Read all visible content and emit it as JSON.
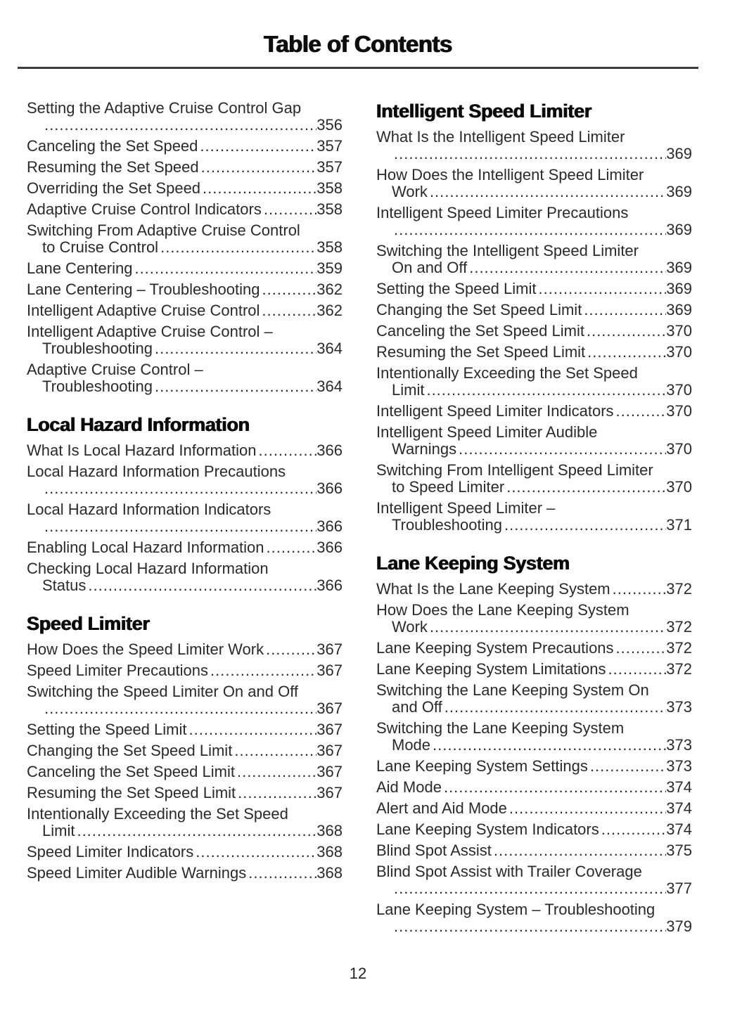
{
  "page": {
    "title": "Table of Contents",
    "page_number": "12"
  },
  "colors": {
    "ink": "#2a2a2a",
    "heading_ink": "#0b0b0b",
    "background": "#ffffff",
    "divider": "#3d3d3d"
  },
  "columns": [
    {
      "sections": [
        {
          "heading": null,
          "entries": [
            {
              "l1": "Setting the Adaptive Cruise Control Gap",
              "l2": "",
              "page": "356"
            },
            {
              "l1": "Canceling the Set Speed",
              "l2": null,
              "page": "357"
            },
            {
              "l1": "Resuming the Set Speed",
              "l2": null,
              "page": "357"
            },
            {
              "l1": "Overriding the Set Speed",
              "l2": null,
              "page": "358"
            },
            {
              "l1": "Adaptive Cruise Control Indicators",
              "l2": null,
              "page": "358"
            },
            {
              "l1": "Switching From Adaptive Cruise Control",
              "l2": "to Cruise Control",
              "page": "358"
            },
            {
              "l1": "Lane Centering",
              "l2": null,
              "page": "359"
            },
            {
              "l1": "Lane Centering – Troubleshooting",
              "l2": null,
              "page": "362"
            },
            {
              "l1": "Intelligent Adaptive Cruise Control",
              "l2": null,
              "page": "362"
            },
            {
              "l1": "Intelligent Adaptive Cruise Control –",
              "l2": "Troubleshooting",
              "page": "364"
            },
            {
              "l1": "Adaptive Cruise Control –",
              "l2": "Troubleshooting",
              "page": "364"
            }
          ]
        },
        {
          "heading": "Local Hazard Information",
          "entries": [
            {
              "l1": "What Is Local Hazard Information",
              "l2": null,
              "page": "366"
            },
            {
              "l1": "Local Hazard Information Precautions",
              "l2": "",
              "page": "366"
            },
            {
              "l1": "Local Hazard Information Indicators",
              "l2": "",
              "page": "366"
            },
            {
              "l1": "Enabling Local Hazard Information",
              "l2": null,
              "page": "366"
            },
            {
              "l1": "Checking Local Hazard Information",
              "l2": "Status",
              "page": "366"
            }
          ]
        },
        {
          "heading": "Speed Limiter",
          "entries": [
            {
              "l1": "How Does the Speed Limiter Work",
              "l2": null,
              "page": "367"
            },
            {
              "l1": "Speed Limiter Precautions",
              "l2": null,
              "page": "367"
            },
            {
              "l1": "Switching the Speed Limiter On and Off",
              "l2": "",
              "page": "367"
            },
            {
              "l1": "Setting the Speed Limit",
              "l2": null,
              "page": "367"
            },
            {
              "l1": "Changing the Set Speed Limit",
              "l2": null,
              "page": "367"
            },
            {
              "l1": "Canceling the Set Speed Limit",
              "l2": null,
              "page": "367"
            },
            {
              "l1": "Resuming the Set Speed Limit",
              "l2": null,
              "page": "367"
            },
            {
              "l1": "Intentionally Exceeding the Set Speed",
              "l2": "Limit",
              "page": "368"
            },
            {
              "l1": "Speed Limiter Indicators",
              "l2": null,
              "page": "368"
            },
            {
              "l1": "Speed Limiter Audible Warnings",
              "l2": null,
              "page": "368"
            }
          ]
        }
      ]
    },
    {
      "sections": [
        {
          "heading": "Intelligent Speed Limiter",
          "entries": [
            {
              "l1": "What Is the Intelligent Speed Limiter",
              "l2": "",
              "page": "369"
            },
            {
              "l1": "How Does the Intelligent Speed Limiter",
              "l2": "Work",
              "page": "369"
            },
            {
              "l1": "Intelligent Speed Limiter Precautions",
              "l2": "",
              "page": "369"
            },
            {
              "l1": "Switching the Intelligent Speed Limiter",
              "l2": "On and Off",
              "page": "369"
            },
            {
              "l1": "Setting the Speed Limit",
              "l2": null,
              "page": "369"
            },
            {
              "l1": "Changing the Set Speed Limit",
              "l2": null,
              "page": "369"
            },
            {
              "l1": "Canceling the Set Speed Limit",
              "l2": null,
              "page": "370"
            },
            {
              "l1": "Resuming the Set Speed Limit",
              "l2": null,
              "page": "370"
            },
            {
              "l1": "Intentionally Exceeding the Set Speed",
              "l2": "Limit",
              "page": "370"
            },
            {
              "l1": "Intelligent Speed Limiter Indicators",
              "l2": null,
              "page": "370"
            },
            {
              "l1": "Intelligent Speed Limiter Audible",
              "l2": "Warnings",
              "page": "370"
            },
            {
              "l1": "Switching From Intelligent Speed Limiter",
              "l2": "to Speed Limiter",
              "page": "370"
            },
            {
              "l1": "Intelligent Speed Limiter –",
              "l2": "Troubleshooting",
              "page": "371"
            }
          ]
        },
        {
          "heading": "Lane Keeping System",
          "entries": [
            {
              "l1": "What Is the Lane Keeping System",
              "l2": null,
              "page": "372"
            },
            {
              "l1": "How Does the Lane Keeping System",
              "l2": "Work",
              "page": "372"
            },
            {
              "l1": "Lane Keeping System Precautions",
              "l2": null,
              "page": "372"
            },
            {
              "l1": "Lane Keeping System Limitations",
              "l2": null,
              "page": "372"
            },
            {
              "l1": "Switching the Lane Keeping System On",
              "l2": "and Off",
              "page": "373"
            },
            {
              "l1": "Switching the Lane Keeping System",
              "l2": "Mode",
              "page": "373"
            },
            {
              "l1": "Lane Keeping System Settings",
              "l2": null,
              "page": "373"
            },
            {
              "l1": "Aid Mode",
              "l2": null,
              "page": "374"
            },
            {
              "l1": "Alert and Aid Mode",
              "l2": null,
              "page": "374"
            },
            {
              "l1": "Lane Keeping System Indicators",
              "l2": null,
              "page": "374"
            },
            {
              "l1": "Blind Spot Assist",
              "l2": null,
              "page": "375"
            },
            {
              "l1": "Blind Spot Assist with Trailer Coverage",
              "l2": "",
              "page": "377"
            },
            {
              "l1": "Lane Keeping System – Troubleshooting",
              "l2": "",
              "page": "379"
            }
          ]
        }
      ]
    }
  ]
}
